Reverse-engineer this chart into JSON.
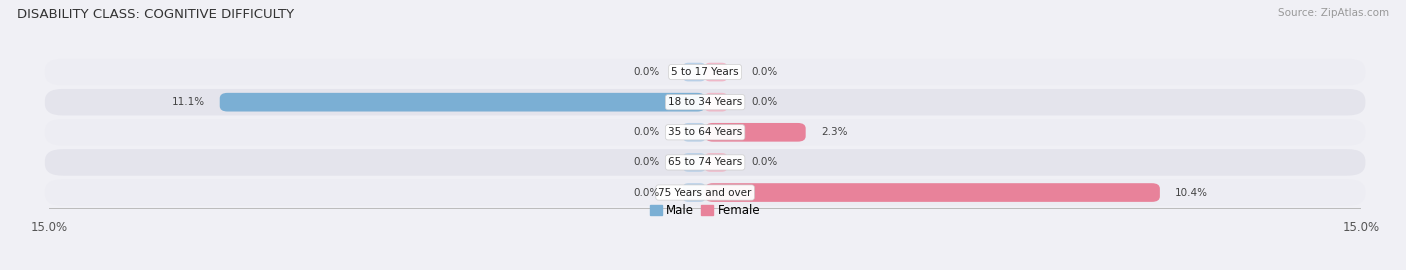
{
  "title": "DISABILITY CLASS: COGNITIVE DIFFICULTY",
  "source": "Source: ZipAtlas.com",
  "categories": [
    "5 to 17 Years",
    "18 to 34 Years",
    "35 to 64 Years",
    "65 to 74 Years",
    "75 Years and over"
  ],
  "male_values": [
    0.0,
    11.1,
    0.0,
    0.0,
    0.0
  ],
  "female_values": [
    0.0,
    0.0,
    2.3,
    0.0,
    10.4
  ],
  "x_max": 15.0,
  "male_color": "#7bafd4",
  "female_color": "#e8829a",
  "male_stub_color": "#b8d0e8",
  "female_stub_color": "#f0b8c8",
  "row_bg_even": "#ededf3",
  "row_bg_odd": "#e4e4ec",
  "fig_bg": "#f0f0f5",
  "title_fontsize": 9.5,
  "label_fontsize": 7.5,
  "tick_fontsize": 8.5,
  "legend_fontsize": 8.5,
  "stub_size": 0.5
}
